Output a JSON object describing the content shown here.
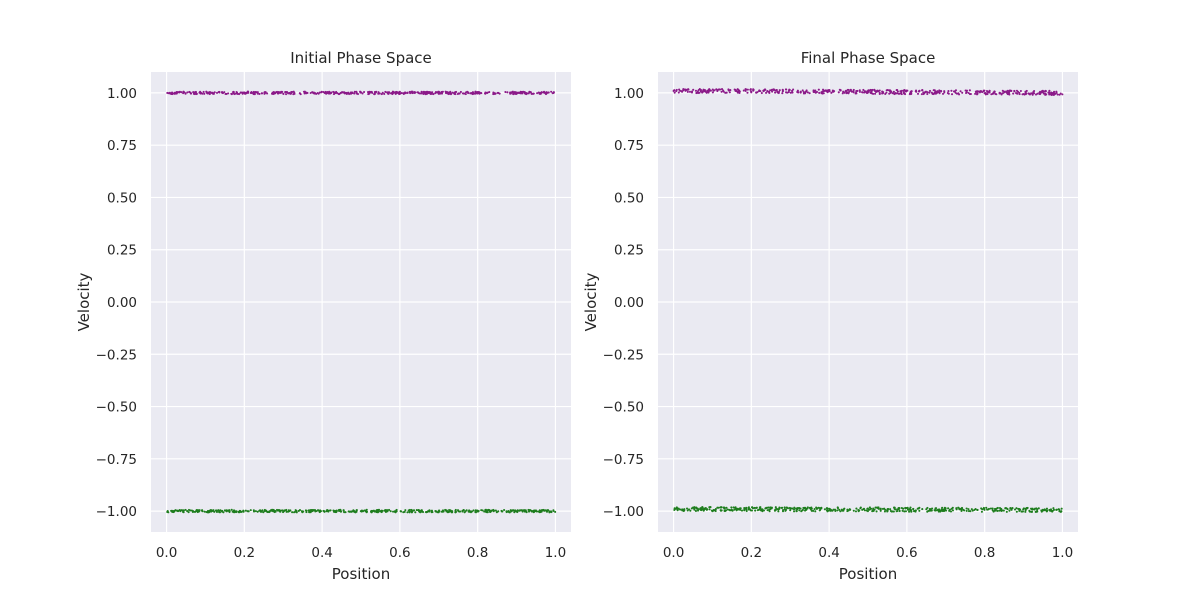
{
  "chart_data": [
    {
      "type": "scatter",
      "title": "Initial Phase Space",
      "xlabel": "Position",
      "ylabel": "Velocity",
      "xlim": [
        -0.04,
        1.04
      ],
      "ylim": [
        -1.1,
        1.1
      ],
      "xticks": [
        0.0,
        0.2,
        0.4,
        0.6,
        0.8,
        1.0
      ],
      "xtick_labels": [
        "0.0",
        "0.2",
        "0.4",
        "0.6",
        "0.8",
        "1.0"
      ],
      "yticks": [
        1.0,
        0.75,
        0.5,
        0.25,
        0.0,
        -0.25,
        -0.5,
        -0.75,
        -1.0
      ],
      "ytick_labels": [
        "1.00",
        "0.75",
        "0.50",
        "0.25",
        "0.00",
        "−0.25",
        "−0.50",
        "−0.75",
        "−1.00"
      ],
      "grid": true,
      "background": "#eaeaf2",
      "series": [
        {
          "color": "#8b1a89",
          "x_range": [
            0.0,
            1.0
          ],
          "y_start": 1.0,
          "y_end": 1.0,
          "spread": 0.006
        },
        {
          "color": "#1e7d1e",
          "x_range": [
            0.0,
            1.0
          ],
          "y_start": -1.0,
          "y_end": -1.0,
          "spread": 0.006
        }
      ]
    },
    {
      "type": "scatter",
      "title": "Final Phase Space",
      "xlabel": "Position",
      "ylabel": "Velocity",
      "xlim": [
        -0.04,
        1.04
      ],
      "ylim": [
        -1.1,
        1.1
      ],
      "xticks": [
        0.0,
        0.2,
        0.4,
        0.6,
        0.8,
        1.0
      ],
      "xtick_labels": [
        "0.0",
        "0.2",
        "0.4",
        "0.6",
        "0.8",
        "1.0"
      ],
      "yticks": [
        1.0,
        0.75,
        0.5,
        0.25,
        0.0,
        -0.25,
        -0.5,
        -0.75,
        -1.0
      ],
      "ytick_labels": [
        "1.00",
        "0.75",
        "0.50",
        "0.25",
        "0.00",
        "−0.25",
        "−0.50",
        "−0.75",
        "−1.00"
      ],
      "grid": true,
      "background": "#eaeaf2",
      "series": [
        {
          "color": "#8b1a89",
          "x_range": [
            0.0,
            1.0
          ],
          "y_start": 1.01,
          "y_end": 1.0,
          "spread": 0.01
        },
        {
          "color": "#1e7d1e",
          "x_range": [
            0.0,
            1.0
          ],
          "y_start": -0.99,
          "y_end": -0.995,
          "spread": 0.01
        }
      ]
    }
  ]
}
